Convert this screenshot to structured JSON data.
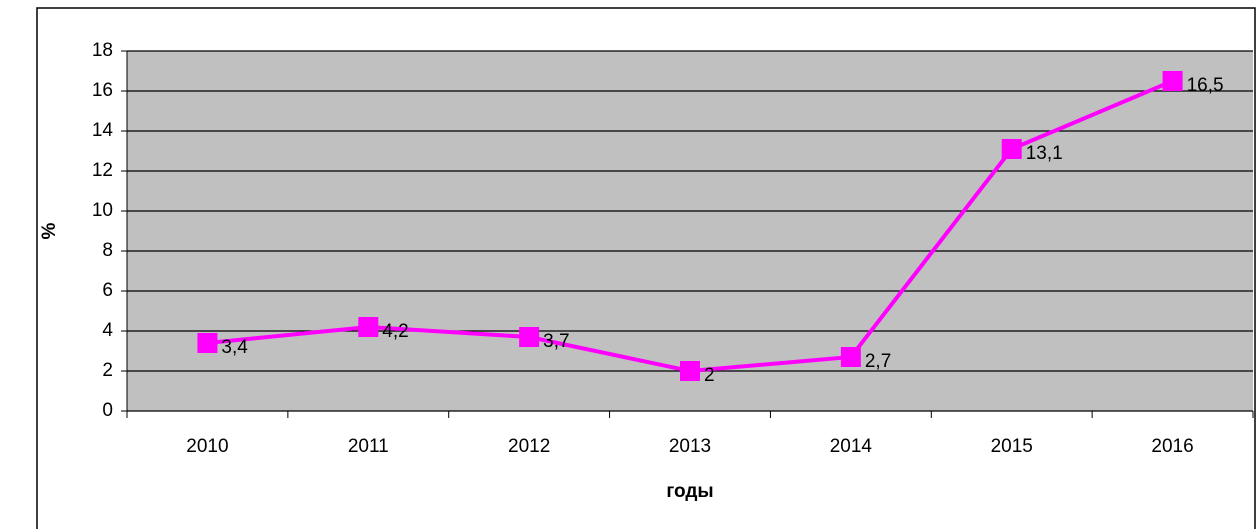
{
  "chart_data": {
    "type": "line",
    "x_label": "годы",
    "y_label": "%",
    "categories": [
      "2010",
      "2011",
      "2012",
      "2013",
      "2014",
      "2015",
      "2016"
    ],
    "series": [
      {
        "color": "#ff00ff",
        "values": [
          3.4,
          4.2,
          3.7,
          2,
          2.7,
          13.1,
          16.5
        ],
        "value_labels": [
          "3,4",
          "4,2",
          "3,7",
          "2",
          "2,7",
          "13,1",
          "16,5"
        ]
      }
    ],
    "ylim": [
      0,
      18
    ],
    "yticks": [
      0,
      2,
      4,
      6,
      8,
      10,
      12,
      14,
      16,
      18
    ],
    "grid": true,
    "plot_background": "#c0c0c0"
  }
}
